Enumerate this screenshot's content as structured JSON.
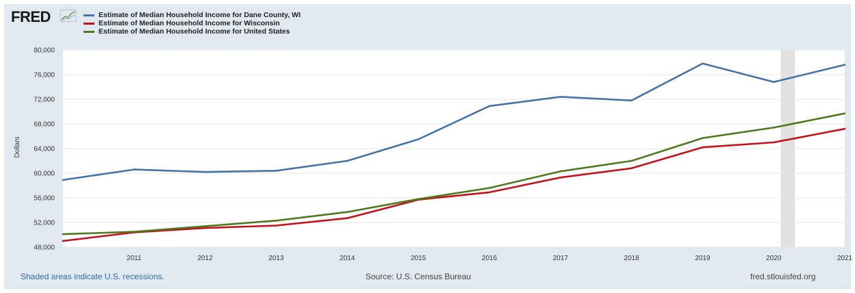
{
  "header": {
    "logo_text": "FRED",
    "logo_icon": "fred-sparkline-icon"
  },
  "footer": {
    "recessions_note": "Shaded areas indicate U.S. recessions.",
    "source": "Source: U.S. Census Bureau",
    "site": "fred.stlouisfed.org"
  },
  "colors": {
    "frame_bg": "#e1e9f0",
    "plot_bg": "#ffffff",
    "recession_shade": "#e1e1e1",
    "dane": "#4572a7",
    "wisconsin": "#c4111c",
    "us": "#4d7a1c"
  },
  "chart_data": {
    "type": "line",
    "title": "",
    "xlabel": "",
    "ylabel": "Dollars",
    "x": [
      2010,
      2011,
      2012,
      2013,
      2014,
      2015,
      2016,
      2017,
      2018,
      2019,
      2020,
      2021
    ],
    "x_tick_labels": [
      "2011",
      "2012",
      "2013",
      "2014",
      "2015",
      "2016",
      "2017",
      "2018",
      "2019",
      "2020",
      "2021"
    ],
    "ylim": [
      48000,
      80000
    ],
    "y_tick_labels": [
      "48,000",
      "52,000",
      "56,000",
      "60,000",
      "64,000",
      "68,000",
      "72,000",
      "76,000",
      "80,000"
    ],
    "grid": true,
    "legend_position": "top-left",
    "recession_periods": [
      [
        2020.1,
        2020.3
      ]
    ],
    "series": [
      {
        "name": "Estimate of Median Household Income for Dane County, WI",
        "color": "#4572a7",
        "values": [
          58900,
          60600,
          60200,
          60400,
          62000,
          65500,
          70900,
          72400,
          71800,
          77800,
          74800,
          77600
        ]
      },
      {
        "name": "Estimate of Median Household Income for Wisconsin",
        "color": "#c4111c",
        "values": [
          49000,
          50400,
          51100,
          51500,
          52700,
          55700,
          56900,
          59300,
          60800,
          64200,
          65000,
          67200
        ]
      },
      {
        "name": "Estimate of Median Household Income for United States",
        "color": "#4d7a1c",
        "values": [
          50100,
          50500,
          51400,
          52300,
          53700,
          55800,
          57600,
          60300,
          62000,
          65700,
          67400,
          69700
        ]
      }
    ]
  }
}
